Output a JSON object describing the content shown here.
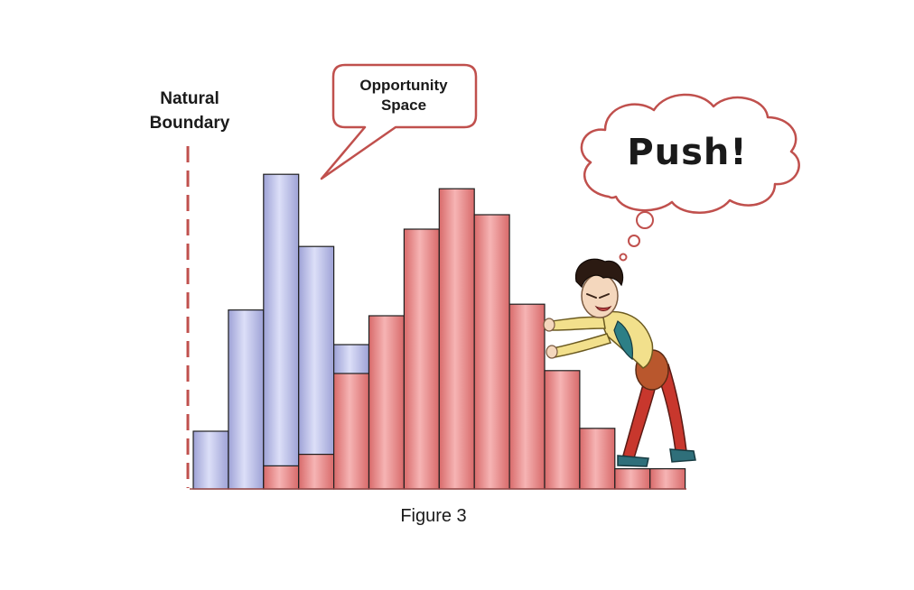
{
  "labels": {
    "boundary_line1": "Natural",
    "boundary_line2": "Boundary",
    "opportunity_line1": "Opportunity",
    "opportunity_line2": "Space",
    "thought": "Push!",
    "caption": "Figure 3"
  },
  "colors": {
    "blue_bar": "#b8bce6",
    "red_bar": "#e98b8b",
    "boundary_line": "#c0504d",
    "callout_stroke": "#c0504d"
  },
  "chart_data": {
    "type": "bar",
    "x": [
      1,
      2,
      3,
      4,
      5,
      6,
      7,
      8,
      9,
      10,
      11,
      12,
      13,
      14
    ],
    "series": [
      {
        "values": [
          2.0,
          6.2,
          10.9,
          8.4,
          5.0,
          0,
          0,
          0,
          0,
          0,
          0,
          0,
          0,
          0
        ]
      },
      {
        "values": [
          0,
          0,
          0.8,
          1.2,
          4.0,
          6.0,
          9.0,
          10.4,
          9.5,
          6.4,
          4.1,
          2.1,
          0.7,
          0.7
        ]
      }
    ],
    "ylim": [
      0,
      12
    ]
  }
}
